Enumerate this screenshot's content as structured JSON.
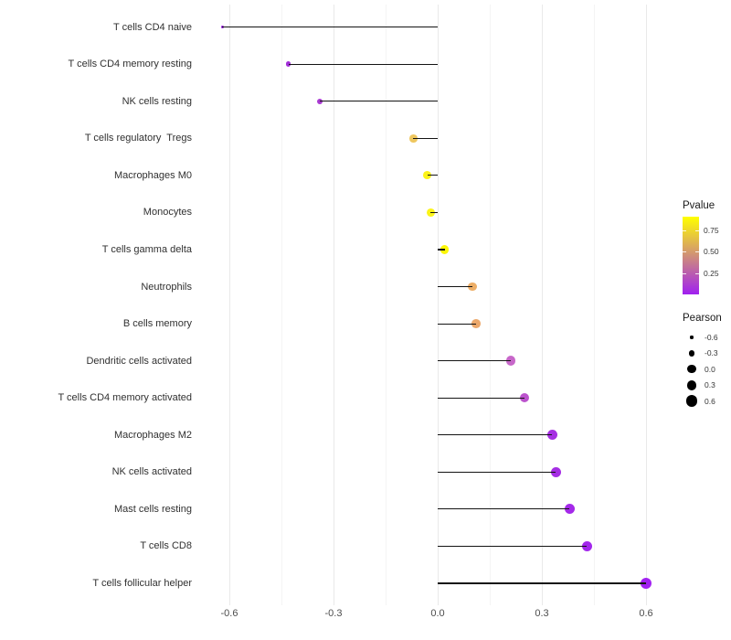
{
  "chart_data": {
    "type": "scatter",
    "subtype": "lollipop",
    "orientation": "horizontal",
    "title": "",
    "xlabel": "",
    "ylabel": "",
    "xlim": [
      -0.68,
      0.66
    ],
    "x_ticks": [
      -0.6,
      -0.3,
      0.0,
      0.3,
      0.6
    ],
    "x_tick_labels": [
      "-0.6",
      "-0.3",
      "0.0",
      "0.3",
      "0.6"
    ],
    "x_minor_ticks": [
      -0.45,
      -0.15,
      0.15,
      0.45
    ],
    "grid": true,
    "stem_color": "#141414",
    "rows": [
      {
        "label": "T cells CD4 naive",
        "pearson": -0.62,
        "color": "#A124EC"
      },
      {
        "label": "T cells CD4 memory resting",
        "pearson": -0.43,
        "color": "#A22FD8"
      },
      {
        "label": "NK cells resting",
        "pearson": -0.34,
        "color": "#A93AD2"
      },
      {
        "label": "T cells regulatory  Tregs",
        "pearson": -0.07,
        "color": "#EFC75F"
      },
      {
        "label": "Macrophages M0",
        "pearson": -0.03,
        "color": "#FCF318"
      },
      {
        "label": "Monocytes",
        "pearson": -0.02,
        "color": "#FBF418"
      },
      {
        "label": "T cells gamma delta",
        "pearson": 0.02,
        "color": "#FDF707"
      },
      {
        "label": "Neutrophils",
        "pearson": 0.1,
        "color": "#EDAE67"
      },
      {
        "label": "B cells memory",
        "pearson": 0.11,
        "color": "#ECA86B"
      },
      {
        "label": "Dendritic cells activated",
        "pearson": 0.21,
        "color": "#C767C9"
      },
      {
        "label": "T cells CD4 memory activated",
        "pearson": 0.25,
        "color": "#BC53CD"
      },
      {
        "label": "Macrophages M2",
        "pearson": 0.33,
        "color": "#A630E2"
      },
      {
        "label": "NK cells activated",
        "pearson": 0.34,
        "color": "#A52EE4"
      },
      {
        "label": "Mast cells resting",
        "pearson": 0.38,
        "color": "#A429E9"
      },
      {
        "label": "T cells CD8",
        "pearson": 0.43,
        "color": "#A327EC"
      },
      {
        "label": "T cells follicular helper",
        "pearson": 0.6,
        "color": "#A221F2"
      }
    ],
    "legends": {
      "pvalue": {
        "title": "Pvalue",
        "tick_labels": [
          "0.75",
          "0.50",
          "0.25"
        ],
        "tick_values": [
          0.75,
          0.5,
          0.25
        ],
        "gradient_top_color": "#FFFF00",
        "gradient_bottom_color": "#A020F0"
      },
      "pearson": {
        "title": "Pearson",
        "entries": [
          {
            "label": "-0.6",
            "value": -0.6
          },
          {
            "label": "-0.3",
            "value": -0.3
          },
          {
            "label": "0.0",
            "value": 0.0
          },
          {
            "label": "0.3",
            "value": 0.3
          },
          {
            "label": "0.6",
            "value": 0.6
          }
        ]
      }
    }
  }
}
